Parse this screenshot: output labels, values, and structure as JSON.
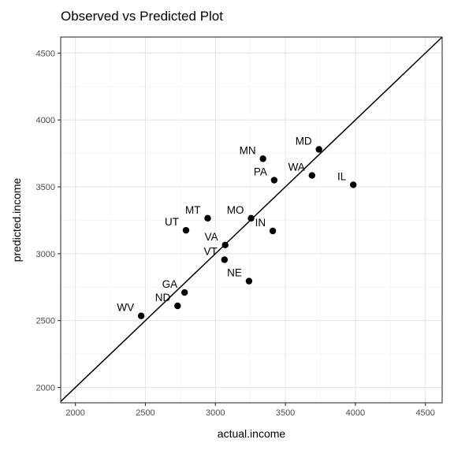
{
  "chart_data": {
    "type": "scatter",
    "title": "Observed vs Predicted Plot",
    "xlabel": "actual.income",
    "ylabel": "predicted.income",
    "xlim": [
      1895,
      4620
    ],
    "ylim": [
      1885,
      4620
    ],
    "xticks": [
      2000,
      2500,
      3000,
      3500,
      4000,
      4500
    ],
    "yticks": [
      2000,
      2500,
      3000,
      3500,
      4000,
      4500
    ],
    "xtick_labels": [
      "2000",
      "2500",
      "3000",
      "3500",
      "4000",
      "4500"
    ],
    "ytick_labels": [
      "2000",
      "2500",
      "3000",
      "3500",
      "4000",
      "4500"
    ],
    "grid": true,
    "reference_line": {
      "slope": 1,
      "intercept": 0
    },
    "points": [
      {
        "label": "MD",
        "x": 3740,
        "y": 3780
      },
      {
        "label": "MN",
        "x": 3340,
        "y": 3710
      },
      {
        "label": "PA",
        "x": 3420,
        "y": 3550
      },
      {
        "label": "WA",
        "x": 3690,
        "y": 3585
      },
      {
        "label": "IL",
        "x": 3985,
        "y": 3515
      },
      {
        "label": "MT",
        "x": 2945,
        "y": 3265
      },
      {
        "label": "MO",
        "x": 3255,
        "y": 3265
      },
      {
        "label": "UT",
        "x": 2790,
        "y": 3175
      },
      {
        "label": "IN",
        "x": 3410,
        "y": 3170
      },
      {
        "label": "VA",
        "x": 3070,
        "y": 3065
      },
      {
        "label": "VT",
        "x": 3065,
        "y": 2955
      },
      {
        "label": "NE",
        "x": 3240,
        "y": 2795
      },
      {
        "label": "GA",
        "x": 2780,
        "y": 2710
      },
      {
        "label": "ND",
        "x": 2730,
        "y": 2610
      },
      {
        "label": "WV",
        "x": 2470,
        "y": 2535
      }
    ]
  }
}
